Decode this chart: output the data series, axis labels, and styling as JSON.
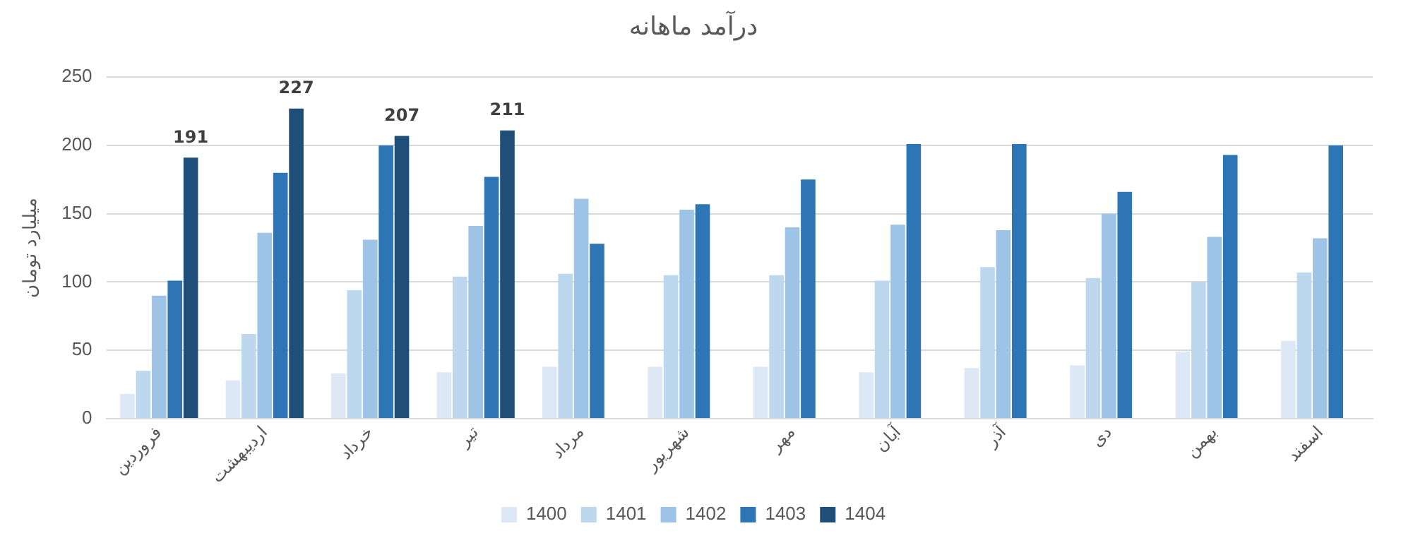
{
  "chart_data": {
    "type": "bar",
    "title": "درآمد ماهانه",
    "ylabel": "میلیارد تومان",
    "categories": [
      "فروردین",
      "اردیبهشت",
      "خرداد",
      "تیر",
      "مرداد",
      "شهریور",
      "مهر",
      "آبان",
      "آذر",
      "دی",
      "بهمن",
      "اسفند"
    ],
    "series": [
      {
        "name": "1400",
        "color": "#dde8f6",
        "values": [
          18,
          28,
          33,
          34,
          38,
          38,
          38,
          34,
          37,
          39,
          49,
          57
        ]
      },
      {
        "name": "1401",
        "color": "#bdd7ee",
        "values": [
          35,
          62,
          94,
          104,
          106,
          105,
          105,
          101,
          111,
          103,
          100,
          107
        ]
      },
      {
        "name": "1402",
        "color": "#9dc3e6",
        "values": [
          90,
          136,
          131,
          141,
          161,
          153,
          140,
          142,
          138,
          150,
          133,
          132
        ]
      },
      {
        "name": "1403",
        "color": "#2e75b6",
        "values": [
          101,
          180,
          200,
          177,
          128,
          157,
          175,
          201,
          201,
          166,
          193,
          200
        ]
      },
      {
        "name": "1404",
        "color": "#1f4e79",
        "values": [
          191,
          227,
          207,
          211,
          null,
          null,
          null,
          null,
          null,
          null,
          null,
          null
        ],
        "value_labels": [
          "191",
          "227",
          "207",
          "211",
          null,
          null,
          null,
          null,
          null,
          null,
          null,
          null
        ]
      }
    ],
    "ylim": [
      0,
      250
    ],
    "yticks": [
      0,
      50,
      100,
      150,
      200,
      250
    ],
    "grid": "y",
    "legend": "bottom"
  }
}
